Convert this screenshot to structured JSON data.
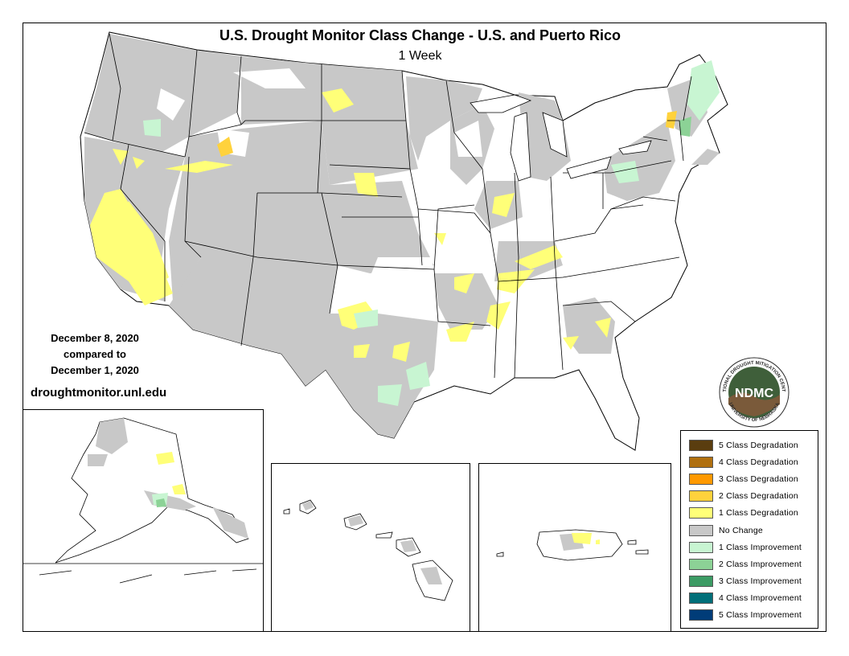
{
  "title": "U.S. Drought Monitor Class Change - U.S. and Puerto Rico",
  "subtitle": "1 Week",
  "dates": {
    "current": "December 8, 2020",
    "compared": "compared to",
    "previous": "December 1, 2020"
  },
  "website": "droughtmonitor.unl.edu",
  "logo": {
    "text": "NDMC",
    "ring_text_top": "NATIONAL DROUGHT MITIGATION CENTER",
    "ring_text_bottom": "UNIVERSITY OF NEBRASKA"
  },
  "insets": {
    "alaska": "Alaska",
    "hawaii": "Hawaii",
    "puerto_rico": "Puerto Rico"
  },
  "legend": [
    {
      "label": "5 Class Degradation",
      "color": "#5a3d0f"
    },
    {
      "label": "4 Class Degradation",
      "color": "#b07010"
    },
    {
      "label": "3 Class Degradation",
      "color": "#ff9900"
    },
    {
      "label": "2 Class Degradation",
      "color": "#ffd23c"
    },
    {
      "label": "1 Class Degradation",
      "color": "#ffff78"
    },
    {
      "label": "No Change",
      "color": "#c8c8c8"
    },
    {
      "label": "1 Class Improvement",
      "color": "#c8f5d2"
    },
    {
      "label": "2 Class Improvement",
      "color": "#8cd296"
    },
    {
      "label": "3 Class Improvement",
      "color": "#3c9b64"
    },
    {
      "label": "4 Class Improvement",
      "color": "#006e78"
    },
    {
      "label": "5 Class Improvement",
      "color": "#003c78"
    }
  ],
  "colors": {
    "no_change": "#c8c8c8",
    "degradation_1": "#ffff78",
    "degradation_2": "#ffd23c",
    "improvement_1": "#c8f5d2",
    "improvement_2": "#8cd296",
    "land": "#ffffff",
    "border": "#000000",
    "logo_green": "#3f5f3a",
    "logo_dark": "#2b2b2b"
  }
}
